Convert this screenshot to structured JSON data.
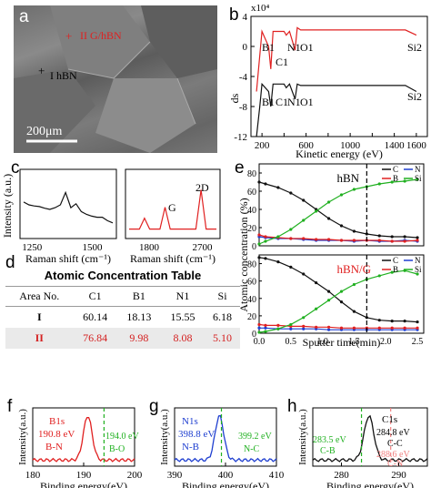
{
  "panels": {
    "a": {
      "letter": "a",
      "label_1": "II G/hBN",
      "label_2": "I hBN",
      "scale": "200μm"
    },
    "b": {
      "letter": "b",
      "exponent": "x10⁴",
      "xlabel": "Kinetic energy (eV)",
      "ylabel": "ds",
      "yticks": [
        "4",
        "0",
        "-4",
        "-8",
        "-12"
      ],
      "xticks": [
        "200",
        "400",
        "600",
        "800",
        "1000",
        "1200",
        "1400",
        "1600"
      ],
      "peaks_top": [
        "B1",
        "C1",
        "N1",
        "O1",
        "Si2"
      ],
      "peaks_bottom": [
        "B1",
        "C1",
        "N1",
        "O1",
        "Si2"
      ]
    },
    "c": {
      "letter": "c",
      "ylabel": "Intensity (a.u.)",
      "xlabel": "Raman shift (cm⁻¹)",
      "left_ticks": [
        "1250",
        "1500"
      ],
      "right_ticks": [
        "1800",
        "2700"
      ],
      "peak_G": "G",
      "peak_2D": "2D"
    },
    "d": {
      "letter": "d",
      "title": "Atomic Concentration Table",
      "headers": [
        "Area No.",
        "C1",
        "B1",
        "N1",
        "Si"
      ],
      "rows": [
        [
          "I",
          "60.14",
          "18.13",
          "15.55",
          "6.18"
        ],
        [
          "II",
          "76.84",
          "9.98",
          "8.08",
          "5.10"
        ]
      ]
    },
    "e": {
      "letter": "e",
      "top_title": "hBN",
      "bottom_title": "hBN/G",
      "ylabel": "Atomic concentration (%)",
      "xlabel": "Sputter time(min)",
      "yticks_top": [
        "0",
        "20",
        "40",
        "60",
        "80"
      ],
      "yticks_bottom": [
        "0",
        "20",
        "40",
        "60",
        "80"
      ],
      "xticks": [
        "0.0",
        "0.5",
        "1.0",
        "1.5",
        "2.0",
        "2.5"
      ],
      "legend": [
        "C",
        "N",
        "B",
        "Si"
      ]
    },
    "f": {
      "letter": "f",
      "ylabel": "Intensity(a.u.)",
      "xlabel": "Binding energy(eV)",
      "xticks": [
        "180",
        "190",
        "200"
      ],
      "peak_name": "B1s",
      "peak_val": "190.8 eV",
      "peak_bond": "B-N",
      "ref_val": "194.0 eV",
      "ref_bond": "B-O"
    },
    "g": {
      "letter": "g",
      "ylabel": "Intensity(a.u.)",
      "xlabel": "Binding energy(eV)",
      "xticks": [
        "390",
        "400",
        "410"
      ],
      "peak_name": "N1s",
      "peak_val": "398.8 eV",
      "peak_bond": "N-B",
      "ref_val": "399.2 eV",
      "ref_bond": "N-C"
    },
    "h": {
      "letter": "h",
      "ylabel": "Intensity(a.u.)",
      "xlabel": "Binding energy(eV)",
      "xticks": [
        "280",
        "290"
      ],
      "peak_name": "C1s",
      "peak_val": "284.8 eV",
      "peak_bond": "C-C",
      "ref1_val": "283.5 eV",
      "ref1_bond": "C-B",
      "ref2_val": "288.6 eV",
      "ref2_bond": "C-N"
    }
  },
  "colors": {
    "red": "#e02020",
    "black": "#111111",
    "blue": "#1f3fd0",
    "green": "#20b020",
    "pink": "#f08080"
  },
  "chart_data": [
    {
      "type": "line",
      "panel": "b",
      "xlim": [
        100,
        1700
      ],
      "ylim": [
        -12,
        4
      ],
      "series": [
        {
          "values_x": [
            150,
            200,
            260,
            280,
            300,
            350,
            400,
            420,
            450,
            500,
            520,
            550,
            600,
            900,
            1200,
            1500,
            1600
          ],
          "values_y": [
            -6,
            2,
            0,
            -3,
            2,
            2,
            2,
            1.5,
            2,
            -0.5,
            2.5,
            2.2,
            2.2,
            2.2,
            2.2,
            2.2,
            1.5
          ]
        },
        {
          "values_x": [
            150,
            180,
            200,
            260,
            280,
            300,
            350,
            400,
            420,
            450,
            500,
            520,
            550,
            600,
            900,
            1200,
            1500,
            1600
          ],
          "values_y": [
            -12,
            -8,
            -5,
            -6,
            -8,
            -5,
            -5,
            -5,
            -5.5,
            -5,
            -7,
            -5,
            -5.2,
            -5.2,
            -5.2,
            -5.2,
            -5.2,
            -6
          ]
        }
      ]
    },
    {
      "type": "line",
      "panel": "c-left",
      "xlim": [
        1200,
        1600
      ],
      "values": [
        0.55,
        0.5,
        0.48,
        0.47,
        0.44,
        0.42,
        0.45,
        0.5,
        0.72,
        0.45,
        0.52,
        0.38,
        0.33,
        0.3,
        0.28,
        0.28,
        0.22,
        0.18
      ]
    },
    {
      "type": "line",
      "panel": "c-right",
      "xlim": [
        1400,
        3000
      ],
      "values": [
        0.05,
        0.05,
        0.05,
        0.3,
        0.05,
        0.05,
        0.05,
        0.55,
        0.05,
        0.05,
        0.05,
        0.05,
        0.05,
        0.05,
        0.95,
        0.05,
        0.05,
        0.05
      ]
    },
    {
      "type": "line",
      "panel": "e-top",
      "xlim": [
        0,
        2.6
      ],
      "ylim": [
        0,
        90
      ],
      "x": [
        0,
        0.1,
        0.3,
        0.5,
        0.7,
        0.9,
        1.1,
        1.3,
        1.5,
        1.7,
        1.9,
        2.1,
        2.3,
        2.5
      ],
      "series": [
        {
          "name": "C",
          "values": [
            70,
            68,
            64,
            58,
            50,
            40,
            30,
            22,
            16,
            13,
            11,
            10,
            10,
            9
          ]
        },
        {
          "name": "N",
          "values": [
            10,
            9,
            8,
            8,
            7,
            6,
            6,
            6,
            5,
            6,
            5,
            5,
            6,
            5
          ]
        },
        {
          "name": "B",
          "values": [
            12,
            10,
            9,
            8,
            8,
            7,
            7,
            6,
            6,
            6,
            6,
            5,
            5,
            6
          ]
        },
        {
          "name": "Si",
          "values": [
            2,
            5,
            10,
            18,
            28,
            38,
            48,
            56,
            62,
            65,
            68,
            70,
            71,
            73
          ]
        }
      ]
    },
    {
      "type": "line",
      "panel": "e-bottom",
      "xlim": [
        0,
        2.6
      ],
      "ylim": [
        0,
        90
      ],
      "x": [
        0,
        0.1,
        0.3,
        0.5,
        0.7,
        0.9,
        1.1,
        1.3,
        1.5,
        1.7,
        1.9,
        2.1,
        2.3,
        2.5
      ],
      "series": [
        {
          "name": "C",
          "values": [
            87,
            86,
            82,
            76,
            68,
            58,
            48,
            36,
            25,
            18,
            15,
            14,
            14,
            13
          ]
        },
        {
          "name": "N",
          "values": [
            6,
            6,
            5,
            5,
            5,
            5,
            4,
            4,
            4,
            4,
            4,
            4,
            4,
            4
          ]
        },
        {
          "name": "B",
          "values": [
            10,
            9,
            9,
            8,
            8,
            7,
            7,
            6,
            6,
            6,
            6,
            6,
            6,
            6
          ]
        },
        {
          "name": "Si",
          "values": [
            1,
            2,
            5,
            10,
            18,
            28,
            38,
            48,
            56,
            62,
            66,
            70,
            72,
            68
          ]
        }
      ]
    },
    {
      "type": "line",
      "panel": "f",
      "xlim": [
        180,
        200
      ],
      "peak": 190.8,
      "ref": 194.0
    },
    {
      "type": "line",
      "panel": "g",
      "xlim": [
        390,
        410
      ],
      "peak": 398.8,
      "ref": 399.2
    },
    {
      "type": "line",
      "panel": "h",
      "xlim": [
        275,
        295
      ],
      "peak": 284.8,
      "ref1": 283.5,
      "ref2": 288.6
    }
  ]
}
